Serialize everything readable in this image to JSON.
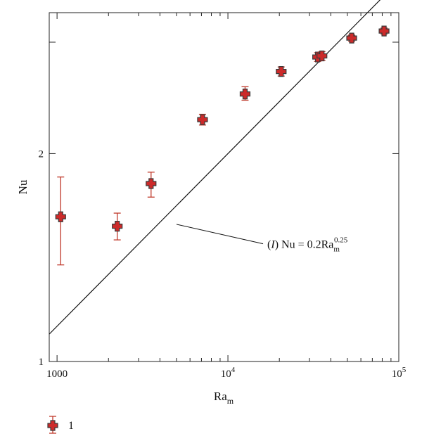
{
  "chart_data": {
    "type": "scatter",
    "xlabel": "Ra",
    "xlabel_sub": "m",
    "ylabel": "Nu",
    "x_scale": "log",
    "y_scale": "log",
    "xlim": [
      900,
      100000
    ],
    "ylim": [
      1,
      3.2
    ],
    "x_ticks": [
      {
        "value": 1000,
        "label": "1000"
      },
      {
        "value": 10000,
        "base": "10",
        "exp": "4"
      },
      {
        "value": 100000,
        "base": "10",
        "exp": "5"
      }
    ],
    "y_ticks": [
      {
        "value": 1,
        "label": "1"
      },
      {
        "value": 2,
        "label": "2"
      }
    ],
    "y_extra_ticks": [
      2.9
    ],
    "grid": false,
    "legend_position": "bottom-left",
    "series": [
      {
        "name": "1",
        "marker": "cross",
        "marker_fill": "#cc2a2a",
        "marker_edge": "#3a3a3a",
        "error_color": "#c0392b",
        "points": [
          {
            "x": 1050,
            "y": 1.62,
            "ylow": 1.38,
            "yhigh": 1.85
          },
          {
            "x": 2250,
            "y": 1.57,
            "ylow": 1.5,
            "yhigh": 1.64
          },
          {
            "x": 3550,
            "y": 1.81,
            "ylow": 1.73,
            "yhigh": 1.88
          },
          {
            "x": 7100,
            "y": 2.24,
            "ylow": 2.2,
            "yhigh": 2.28
          },
          {
            "x": 12600,
            "y": 2.44,
            "ylow": 2.39,
            "yhigh": 2.5
          },
          {
            "x": 20500,
            "y": 2.63,
            "ylow": 2.59,
            "yhigh": 2.67
          },
          {
            "x": 33500,
            "y": 2.76,
            "ylow": 2.72,
            "yhigh": 2.8
          },
          {
            "x": 35500,
            "y": 2.77,
            "ylow": 2.73,
            "yhigh": 2.81
          },
          {
            "x": 53000,
            "y": 2.94,
            "ylow": 2.91,
            "yhigh": 2.97
          },
          {
            "x": 82000,
            "y": 3.01,
            "ylow": 2.98,
            "yhigh": 3.04
          }
        ]
      }
    ],
    "fit_line": {
      "coefficient": 0.2,
      "exponent": 0.25,
      "x_range": [
        900,
        100000
      ]
    },
    "annotation": {
      "prefix_open": "(",
      "italic": "I",
      "prefix_close": ") Nu = 0.2Ra",
      "sub": "m",
      "sup": "0.25",
      "leader_from": [
        5000,
        1.58
      ],
      "text_anchor": [
        17000,
        1.46
      ]
    },
    "legend": [
      {
        "label": "1"
      }
    ]
  }
}
